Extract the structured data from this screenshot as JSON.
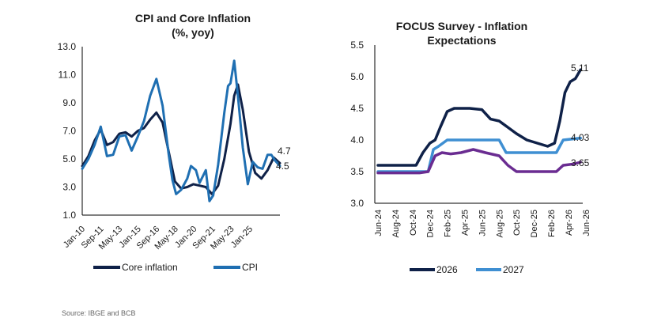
{
  "source": "Source: IBGE and BCB",
  "colors": {
    "dark": "#0f2148",
    "mid": "#1f6fb2",
    "purple": "#6a2c91",
    "light": "#3f8fd2"
  },
  "chart_data": [
    {
      "type": "line",
      "title": [
        "CPI and Core Inflation",
        "(%, yoy)"
      ],
      "ylim": [
        1.0,
        13.0
      ],
      "yticks": [
        "13.0",
        "11.0",
        "9.0",
        "7.0",
        "5.0",
        "3.0",
        "1.0"
      ],
      "xticks": [
        "Jan-10",
        "Sep-11",
        "May-13",
        "Jan-15",
        "Sep-16",
        "May-18",
        "Jan-20",
        "Sep-21",
        "May-23",
        "Jan-25"
      ],
      "end_labels": [
        "4.7",
        "4.5"
      ],
      "legend": [
        "Core inflation",
        "CPI"
      ],
      "series": [
        {
          "name": "Core inflation",
          "color": "#0f2148",
          "x": [
            2010.0,
            2010.5,
            2011.0,
            2011.5,
            2012.0,
            2012.5,
            2013.0,
            2013.5,
            2014.0,
            2014.5,
            2015.0,
            2015.5,
            2016.0,
            2016.5,
            2017.0,
            2017.5,
            2018.0,
            2018.5,
            2019.0,
            2019.5,
            2020.0,
            2020.5,
            2021.0,
            2021.5,
            2022.0,
            2022.3,
            2022.6,
            2023.0,
            2023.5,
            2024.0,
            2024.5,
            2025.0,
            2025.5,
            2026.0
          ],
          "y": [
            4.5,
            5.2,
            6.3,
            7.1,
            6.0,
            6.2,
            6.8,
            6.9,
            6.6,
            7.0,
            7.2,
            7.8,
            8.3,
            7.6,
            5.5,
            3.4,
            2.9,
            3.0,
            3.2,
            3.1,
            3.0,
            2.5,
            3.1,
            5.0,
            7.5,
            9.5,
            10.3,
            8.5,
            5.5,
            4.0,
            3.6,
            4.2,
            5.1,
            4.7
          ]
        },
        {
          "name": "CPI",
          "color": "#1f6fb2",
          "x": [
            2010.0,
            2010.5,
            2011.0,
            2011.5,
            2012.0,
            2012.5,
            2013.0,
            2013.5,
            2014.0,
            2014.5,
            2015.0,
            2015.5,
            2016.0,
            2016.5,
            2017.0,
            2017.3,
            2017.6,
            2018.0,
            2018.5,
            2018.8,
            2019.2,
            2019.5,
            2020.0,
            2020.3,
            2020.6,
            2021.0,
            2021.5,
            2021.8,
            2022.0,
            2022.3,
            2022.6,
            2023.0,
            2023.4,
            2023.8,
            2024.2,
            2024.6,
            2025.0,
            2025.3,
            2025.6,
            2026.0
          ],
          "y": [
            4.3,
            5.0,
            6.0,
            7.3,
            5.2,
            5.3,
            6.6,
            6.7,
            5.6,
            6.6,
            7.7,
            9.5,
            10.7,
            8.8,
            5.3,
            3.5,
            2.5,
            2.8,
            3.6,
            4.5,
            4.2,
            3.3,
            4.2,
            2.0,
            2.4,
            4.6,
            8.3,
            10.2,
            10.4,
            12.0,
            9.5,
            5.8,
            3.2,
            4.8,
            4.4,
            4.3,
            5.3,
            5.3,
            4.9,
            4.5
          ]
        }
      ]
    },
    {
      "type": "line",
      "title": [
        "FOCUS Survey - Inflation",
        "Expectations"
      ],
      "ylim": [
        3.0,
        5.5
      ],
      "yticks": [
        "5.5",
        "5.0",
        "4.5",
        "4.0",
        "3.5",
        "3.0"
      ],
      "xticks": [
        "Jun-24",
        "Aug-24",
        "Oct-24",
        "Dec-24",
        "Feb-25",
        "Apr-25",
        "Jun-25",
        "Aug-25",
        "Oct-25",
        "Dec-25",
        "Feb-26",
        "Apr-26",
        "Jun-26"
      ],
      "end_labels": [
        "5.11",
        "4.03",
        "3.65"
      ],
      "legend": [
        "2026",
        "2027"
      ],
      "series": [
        {
          "name": "2026",
          "color": "#0f2148",
          "x": [
            0,
            1.5,
            2.2,
            2.6,
            3.0,
            3.3,
            3.6,
            4.0,
            4.4,
            4.8,
            5.3,
            6.0,
            6.5,
            7.0,
            7.5,
            8.0,
            8.6,
            9.2,
            9.8,
            10.2,
            10.5,
            10.8,
            11.1,
            11.4,
            11.7
          ],
          "y": [
            3.6,
            3.6,
            3.6,
            3.8,
            3.95,
            4.0,
            4.2,
            4.45,
            4.5,
            4.5,
            4.5,
            4.48,
            4.33,
            4.3,
            4.2,
            4.1,
            4.0,
            3.95,
            3.9,
            3.95,
            4.3,
            4.75,
            4.92,
            4.97,
            5.11
          ]
        },
        {
          "name": "2027",
          "color": "#3f8fd2",
          "x": [
            0,
            2.4,
            2.9,
            3.2,
            3.5,
            4.0,
            5.0,
            7.0,
            7.4,
            10.3,
            10.7,
            11.7
          ],
          "y": [
            3.5,
            3.5,
            3.5,
            3.85,
            3.9,
            4.0,
            4.0,
            4.0,
            3.8,
            3.8,
            4.0,
            4.03
          ]
        },
        {
          "name": "3.65 series",
          "color": "#6a2c91",
          "x": [
            0,
            2.4,
            2.9,
            3.3,
            3.7,
            4.2,
            4.8,
            5.5,
            6.2,
            7.0,
            7.5,
            8.0,
            10.3,
            10.7,
            11.3,
            11.7
          ],
          "y": [
            3.48,
            3.48,
            3.5,
            3.75,
            3.8,
            3.78,
            3.8,
            3.85,
            3.8,
            3.75,
            3.6,
            3.5,
            3.5,
            3.6,
            3.62,
            3.65
          ]
        }
      ]
    }
  ]
}
